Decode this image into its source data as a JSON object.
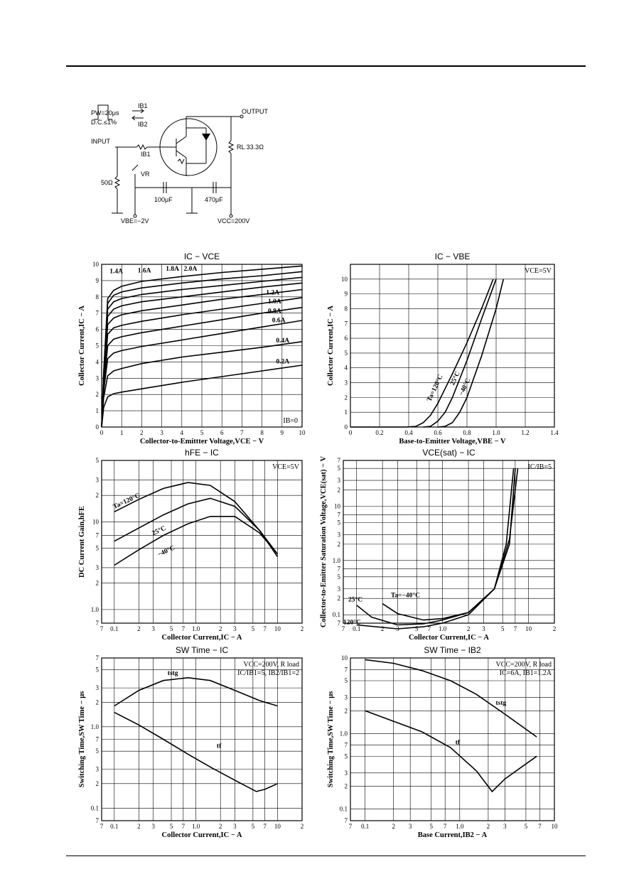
{
  "circuit": {
    "pulse": "PW=20μs",
    "duty": "D.C.≤1%",
    "ib1_arrow": "IB1",
    "ib2_arrow": "IB2",
    "input": "INPUT",
    "ib1": "IB1",
    "output": "OUTPUT",
    "rl": "RL 33.3Ω",
    "r50": "50Ω",
    "vr": "VR",
    "c1": "100μF",
    "c2": "470μF",
    "vbe": "VBE=−2V",
    "vcc": "VCC=200V"
  },
  "chart_data": [
    {
      "id": "ic-vce",
      "type": "line",
      "title": "IC − VCE",
      "xlabel": "Collector-to-Emittter Voltage,VCE − V",
      "ylabel": "Collector Current,IC − A",
      "xlim": [
        0,
        10
      ],
      "ylim": [
        0,
        10
      ],
      "xticks": [
        "0",
        "1",
        "2",
        "3",
        "4",
        "5",
        "6",
        "7",
        "8",
        "9",
        "10"
      ],
      "yticks": [
        "0",
        "1",
        "2",
        "3",
        "4",
        "5",
        "6",
        "7",
        "8",
        "9",
        "10"
      ],
      "annotation": "IB=0",
      "series": [
        {
          "name": "0.2A",
          "label_at": [
            8.7,
            3.9
          ],
          "x": [
            0,
            0.1,
            0.3,
            0.6,
            1,
            2,
            4,
            6,
            8,
            10
          ],
          "y": [
            0,
            1.2,
            1.85,
            2.05,
            2.15,
            2.35,
            2.75,
            3.1,
            3.45,
            3.8
          ]
        },
        {
          "name": "0.4A",
          "label_at": [
            8.7,
            5.2
          ],
          "x": [
            0,
            0.1,
            0.3,
            0.6,
            1,
            2,
            4,
            6,
            8,
            10
          ],
          "y": [
            0,
            1.8,
            3.15,
            3.45,
            3.6,
            3.9,
            4.3,
            4.6,
            4.9,
            5.25
          ]
        },
        {
          "name": "0.6A",
          "label_at": [
            8.5,
            6.45
          ],
          "x": [
            0,
            0.1,
            0.3,
            0.6,
            1,
            2,
            4,
            6,
            8,
            10
          ],
          "y": [
            0,
            2.2,
            4.2,
            4.55,
            4.7,
            4.95,
            5.35,
            5.75,
            6.15,
            6.55
          ]
        },
        {
          "name": "0.8A",
          "label_at": [
            8.3,
            7.0
          ],
          "x": [
            0,
            0.1,
            0.3,
            0.6,
            1,
            2,
            4,
            6,
            8,
            10
          ],
          "y": [
            0,
            2.5,
            5.0,
            5.4,
            5.55,
            5.8,
            6.2,
            6.6,
            7.0,
            7.35
          ]
        },
        {
          "name": "1.0A",
          "label_at": [
            8.3,
            7.6
          ],
          "x": [
            0,
            0.1,
            0.3,
            0.6,
            1,
            2,
            4,
            6,
            8,
            10
          ],
          "y": [
            0,
            2.7,
            5.7,
            6.1,
            6.25,
            6.5,
            6.9,
            7.25,
            7.6,
            7.95
          ]
        },
        {
          "name": "1.2A",
          "label_at": [
            8.2,
            8.15
          ],
          "x": [
            0,
            0.1,
            0.3,
            0.6,
            1,
            2,
            4,
            6,
            8,
            10
          ],
          "y": [
            0,
            2.9,
            6.3,
            6.7,
            6.9,
            7.15,
            7.5,
            7.85,
            8.15,
            8.45
          ]
        },
        {
          "name": "1.4A",
          "label_at": [
            0.4,
            9.45
          ],
          "x": [
            0,
            0.1,
            0.3,
            0.6,
            1,
            2,
            4,
            6,
            8,
            10
          ],
          "y": [
            0,
            3.05,
            6.8,
            7.25,
            7.45,
            7.7,
            8.0,
            8.3,
            8.6,
            8.85
          ]
        },
        {
          "name": "1.6A",
          "label_at": [
            1.8,
            9.5
          ],
          "x": [
            0,
            0.1,
            0.3,
            0.6,
            1,
            2,
            4,
            6,
            8,
            10
          ],
          "y": [
            0,
            3.15,
            7.25,
            7.7,
            7.9,
            8.15,
            8.45,
            8.7,
            8.95,
            9.2
          ]
        },
        {
          "name": "1.8A",
          "label_at": [
            3.2,
            9.6
          ],
          "x": [
            0,
            0.1,
            0.3,
            0.6,
            1,
            2,
            4,
            6,
            8,
            10
          ],
          "y": [
            0,
            3.25,
            7.6,
            8.1,
            8.3,
            8.55,
            8.85,
            9.1,
            9.3,
            9.55
          ]
        },
        {
          "name": "2.0A",
          "label_at": [
            4.1,
            9.6
          ],
          "x": [
            0,
            0.1,
            0.3,
            0.6,
            1,
            2,
            4,
            6,
            8,
            10
          ],
          "y": [
            0,
            3.3,
            7.9,
            8.4,
            8.65,
            8.95,
            9.25,
            9.5,
            9.7,
            9.9
          ]
        }
      ]
    },
    {
      "id": "ic-vbe",
      "type": "line",
      "title": "IC − VBE",
      "xlabel": "Base-to-Emitter Voltage,VBE − V",
      "ylabel": "Collector Current,IC − A",
      "xlim": [
        0,
        1.4
      ],
      "ylim": [
        0,
        11
      ],
      "xticks": [
        "0",
        "0.2",
        "0.4",
        "0.6",
        "0.8",
        "1.0",
        "1.2",
        "1.4"
      ],
      "yticks": [
        "0",
        "1",
        "2",
        "3",
        "4",
        "5",
        "6",
        "7",
        "8",
        "9",
        "10"
      ],
      "annotation": "VCE=5V",
      "series": [
        {
          "name": "Ta=120°C",
          "label_at": [
            0.55,
            1.7
          ],
          "x": [
            0,
            0.38,
            0.45,
            0.5,
            0.55,
            0.6,
            0.7,
            0.8,
            0.9,
            0.98
          ],
          "y": [
            0,
            0,
            0.05,
            0.3,
            0.8,
            1.6,
            3.6,
            5.7,
            8.0,
            10
          ]
        },
        {
          "name": "25°C",
          "label_at": [
            0.71,
            2.8
          ],
          "x": [
            0.5,
            0.55,
            0.6,
            0.65,
            0.7,
            0.8,
            0.9,
            1.0
          ],
          "y": [
            0,
            0.05,
            0.4,
            1.0,
            2.0,
            4.5,
            7.3,
            10
          ]
        },
        {
          "name": "−40°C",
          "label_at": [
            0.77,
            2.1
          ],
          "x": [
            0.6,
            0.65,
            0.7,
            0.75,
            0.8,
            0.9,
            1.0,
            1.05
          ],
          "y": [
            0,
            0.05,
            0.3,
            1.0,
            2.0,
            4.8,
            8.0,
            10
          ]
        }
      ]
    },
    {
      "id": "hfe-ic",
      "type": "line",
      "title": "hFE − IC",
      "xlabel": "Collector Current,IC − A",
      "ylabel": "DC Current Gain,hFE",
      "xlim": [
        0.07,
        20
      ],
      "ylim": [
        0.7,
        50
      ],
      "scale": "log-log",
      "annotation": "VCE=5V",
      "series": [
        {
          "name": "Ta=120°C",
          "label_at": [
            0.1,
            14
          ],
          "x": [
            0.1,
            0.2,
            0.4,
            0.8,
            1.5,
            3,
            6,
            10
          ],
          "y": [
            13,
            18,
            24,
            28,
            26,
            17,
            8,
            4
          ]
        },
        {
          "name": "25°C",
          "label_at": [
            0.3,
            7
          ],
          "x": [
            0.1,
            0.2,
            0.4,
            0.8,
            1.5,
            3,
            6,
            10
          ],
          "y": [
            6,
            8.5,
            12,
            16,
            18.5,
            15,
            8,
            4.3
          ]
        },
        {
          "name": "−40°C",
          "label_at": [
            0.35,
            4
          ],
          "x": [
            0.1,
            0.2,
            0.4,
            0.8,
            1.5,
            3,
            6,
            10
          ],
          "y": [
            3.2,
            4.8,
            7,
            9.5,
            11.5,
            11.5,
            7.5,
            4.3
          ]
        }
      ]
    },
    {
      "id": "vcesat-ic",
      "type": "line",
      "title": "VCE(sat) − IC",
      "xlabel": "Collector Current,IC − A",
      "ylabel": "Collector-to-Emitter Saturation Voltage,VCE(sat) − V",
      "xlim": [
        0.07,
        20
      ],
      "ylim": [
        0.07,
        70
      ],
      "scale": "log-log",
      "annotation": "IC/IB=5",
      "series": [
        {
          "name": "25°C",
          "label_at": [
            0.08,
            0.175
          ],
          "x": [
            0.1,
            0.15,
            0.3,
            0.6,
            1,
            2,
            4,
            6,
            7
          ],
          "y": [
            0.15,
            0.09,
            0.065,
            0.068,
            0.08,
            0.11,
            0.3,
            2,
            50
          ]
        },
        {
          "name": "Ta=−40°C",
          "label_at": [
            0.25,
            0.21
          ],
          "x": [
            0.2,
            0.3,
            0.6,
            1,
            2,
            4,
            6,
            7.5
          ],
          "y": [
            0.16,
            0.105,
            0.08,
            0.085,
            0.11,
            0.3,
            2.5,
            50
          ]
        },
        {
          "name": "120°C",
          "label_at": [
            0.07,
            0.067
          ],
          "x": [
            0.1,
            0.3,
            0.6,
            1,
            2,
            4,
            5.5,
            6.7
          ],
          "y": [
            0.065,
            0.055,
            0.06,
            0.07,
            0.1,
            0.3,
            2,
            50
          ]
        }
      ]
    },
    {
      "id": "swtime-ic",
      "type": "line",
      "title": "SW Time − IC",
      "xlabel": "Collector Current,IC − A",
      "ylabel": "Switching Time,SW Time − μs",
      "xlim": [
        0.07,
        20
      ],
      "ylim": [
        0.07,
        7
      ],
      "scale": "log-log",
      "annotation": [
        "VCC=200V, R load",
        "IC/IB1=5, IB2/IB1=2"
      ],
      "series": [
        {
          "name": "tstg",
          "label_at": [
            0.45,
            4.3
          ],
          "x": [
            0.1,
            0.2,
            0.4,
            0.8,
            1.5,
            3,
            6,
            10
          ],
          "y": [
            1.8,
            2.8,
            3.7,
            4.0,
            3.7,
            2.8,
            2.1,
            1.8
          ]
        },
        {
          "name": "tf",
          "label_at": [
            1.8,
            0.55
          ],
          "x": [
            0.1,
            0.2,
            0.4,
            0.8,
            1.5,
            3,
            5.5,
            7,
            10
          ],
          "y": [
            1.5,
            1.05,
            0.7,
            0.46,
            0.32,
            0.22,
            0.16,
            0.17,
            0.2
          ]
        }
      ]
    },
    {
      "id": "swtime-ib2",
      "type": "line",
      "title": "SW Time − IB2",
      "xlabel": "Base Current,IB2 − A",
      "ylabel": "Switching Time,SW Time − μs",
      "xlim": [
        0.07,
        10
      ],
      "ylim": [
        0.07,
        10
      ],
      "scale": "log-log",
      "annotation": [
        "VCC=200V, R load",
        "IC=6A, IB1=1.2A"
      ],
      "series": [
        {
          "name": "tstg",
          "label_at": [
            2.4,
            2.4
          ],
          "x": [
            0.1,
            0.2,
            0.4,
            0.8,
            1.5,
            3,
            6.5
          ],
          "y": [
            9.5,
            8.5,
            6.8,
            5,
            3.3,
            1.8,
            0.9
          ]
        },
        {
          "name": "tf",
          "label_at": [
            0.9,
            0.72
          ],
          "x": [
            0.1,
            0.2,
            0.4,
            0.8,
            1.5,
            2.2,
            3,
            6.5
          ],
          "y": [
            2,
            1.45,
            1.05,
            0.65,
            0.32,
            0.17,
            0.25,
            0.5
          ]
        }
      ]
    }
  ]
}
